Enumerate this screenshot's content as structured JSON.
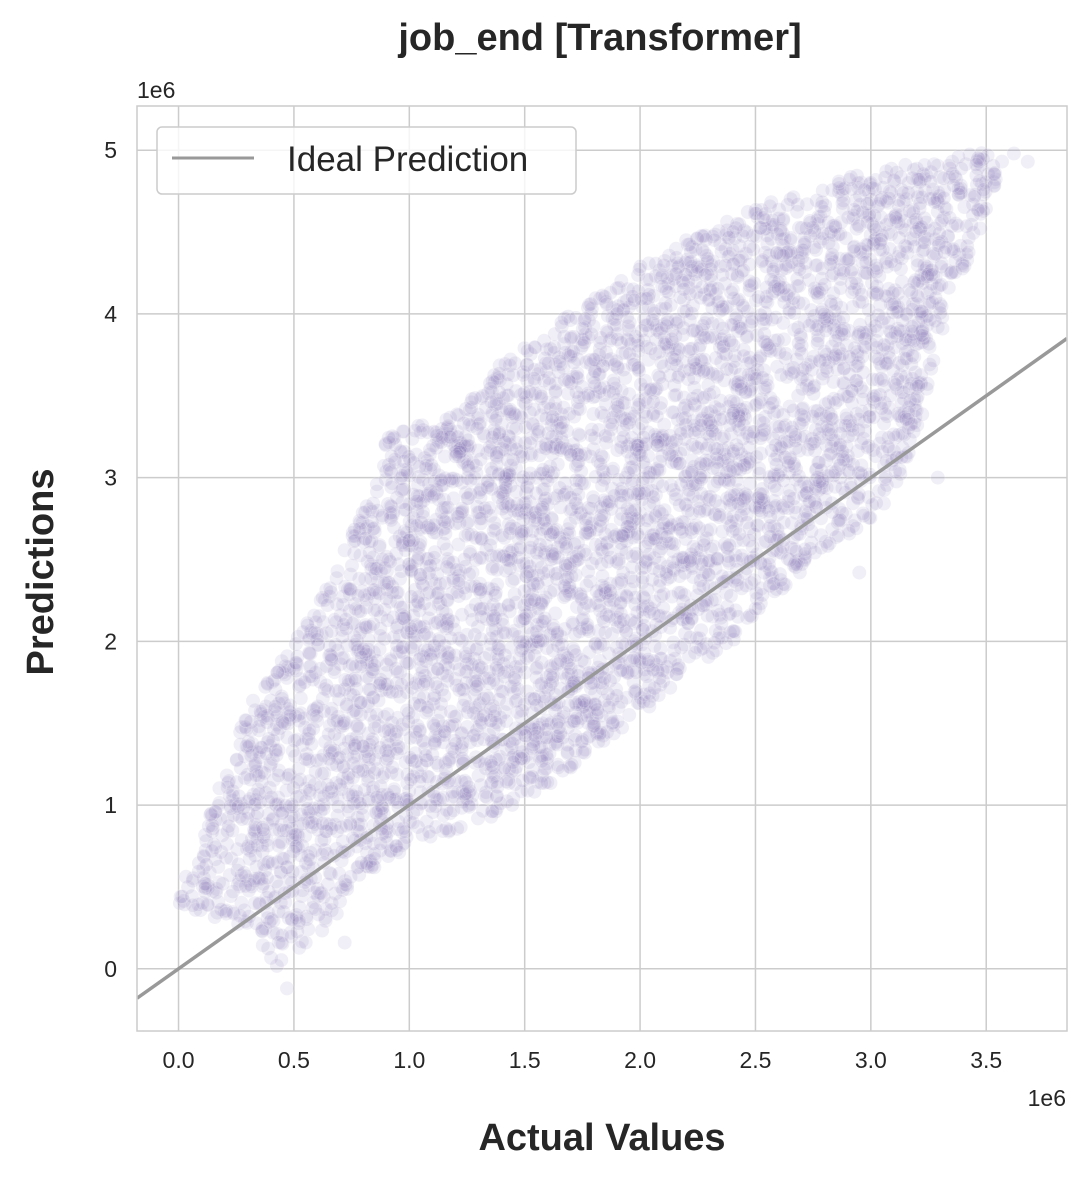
{
  "chart_data": {
    "type": "scatter",
    "title": "job_end [Transformer]",
    "xlabel": "Actual Values",
    "ylabel": "Predictions",
    "x_offset_label": "1e6",
    "y_offset_label": "1e6",
    "xlim": [
      -0.18,
      3.85
    ],
    "ylim": [
      -0.38,
      5.27
    ],
    "x_scale": 1000000,
    "y_scale": 1000000,
    "xticks": [
      0.0,
      0.5,
      1.0,
      1.5,
      2.0,
      2.5,
      3.0,
      3.5
    ],
    "xtick_labels": [
      "0.0",
      "0.5",
      "1.0",
      "1.5",
      "2.0",
      "2.5",
      "3.0",
      "3.5"
    ],
    "yticks": [
      0,
      1,
      2,
      3,
      4,
      5
    ],
    "ytick_labels": [
      "0",
      "1",
      "2",
      "3",
      "4",
      "5"
    ],
    "grid": true,
    "legend": {
      "placement": "upper-left",
      "entries": [
        "Ideal Prediction"
      ]
    },
    "series": [
      {
        "kind": "scatter",
        "color": "#8172b3",
        "opacity": 0.12,
        "point_cloud_outline": [
          [
            0.0,
            0.4
          ],
          [
            0.02,
            0.55
          ],
          [
            0.1,
            0.8
          ],
          [
            0.2,
            1.2
          ],
          [
            0.3,
            1.6
          ],
          [
            0.45,
            1.9
          ],
          [
            0.55,
            2.1
          ],
          [
            0.7,
            2.5
          ],
          [
            0.8,
            2.8
          ],
          [
            0.9,
            3.25
          ],
          [
            1.0,
            3.3
          ],
          [
            1.2,
            3.4
          ],
          [
            1.4,
            3.7
          ],
          [
            1.6,
            3.9
          ],
          [
            1.8,
            4.1
          ],
          [
            2.0,
            4.3
          ],
          [
            2.2,
            4.45
          ],
          [
            2.5,
            4.65
          ],
          [
            2.8,
            4.8
          ],
          [
            3.1,
            4.9
          ],
          [
            3.4,
            4.97
          ],
          [
            3.6,
            5.0
          ],
          [
            3.5,
            4.6
          ],
          [
            3.35,
            4.1
          ],
          [
            3.25,
            3.6
          ],
          [
            3.2,
            3.2
          ],
          [
            3.05,
            2.8
          ],
          [
            2.8,
            2.55
          ],
          [
            2.6,
            2.3
          ],
          [
            2.4,
            2.0
          ],
          [
            2.2,
            1.8
          ],
          [
            2.0,
            1.55
          ],
          [
            1.8,
            1.35
          ],
          [
            1.6,
            1.1
          ],
          [
            1.4,
            0.95
          ],
          [
            1.2,
            0.85
          ],
          [
            1.0,
            0.75
          ],
          [
            0.8,
            0.55
          ],
          [
            0.65,
            0.25
          ],
          [
            0.5,
            0.1
          ],
          [
            0.45,
            -0.05
          ],
          [
            0.35,
            0.15
          ],
          [
            0.2,
            0.3
          ],
          [
            0.05,
            0.35
          ]
        ]
      },
      {
        "kind": "line",
        "name": "Ideal Prediction",
        "color": "#999999",
        "x": [
          -0.18,
          3.85
        ],
        "y": [
          -0.18,
          3.85
        ]
      }
    ]
  }
}
